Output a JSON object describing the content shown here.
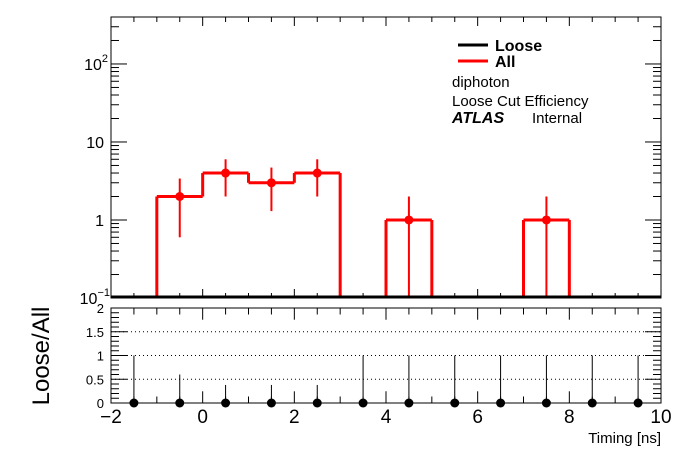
{
  "chart_data": {
    "type": "histogram",
    "colors": {
      "loose": "#000000",
      "all": "#ff0000",
      "ratio_points": "#000000"
    },
    "legend": {
      "placement": "top-right",
      "entries": [
        {
          "name": "Loose",
          "color": "#000000"
        },
        {
          "name": "All",
          "color": "#ff0000"
        }
      ]
    },
    "annotations": {
      "line1": "diphoton",
      "line2": "Loose Cut Efficiency",
      "atlas": "ATLAS",
      "internal": "Internal"
    },
    "x_axis": {
      "label": "Timing [ns]",
      "range": [
        -2,
        10
      ],
      "ticks": [
        -2,
        0,
        2,
        4,
        6,
        8,
        10
      ],
      "tick_labels": [
        "−2",
        "0",
        "2",
        "4",
        "6",
        "8",
        "10"
      ]
    },
    "top_panel": {
      "y_scale": "log",
      "y_range": [
        0.1,
        400
      ],
      "y_ticks": [
        {
          "value": 0.1,
          "base": "10",
          "exp": "−1"
        },
        {
          "value": 1,
          "label": "1"
        },
        {
          "value": 10,
          "label": "10"
        },
        {
          "value": 100,
          "base": "10",
          "exp": "2"
        }
      ],
      "series": [
        {
          "name": "All",
          "bins": [
            {
              "lo": -1,
              "hi": 0,
              "content": 2,
              "err_lo": 0.6,
              "err_hi": 3.4
            },
            {
              "lo": 0,
              "hi": 1,
              "content": 4,
              "err_lo": 2,
              "err_hi": 6
            },
            {
              "lo": 1,
              "hi": 2,
              "content": 3,
              "err_lo": 1.3,
              "err_hi": 4.7
            },
            {
              "lo": 2,
              "hi": 3,
              "content": 4,
              "err_lo": 2,
              "err_hi": 6
            },
            {
              "lo": 4,
              "hi": 5,
              "content": 1,
              "err_lo": 0.1,
              "err_hi": 2
            },
            {
              "lo": 7,
              "hi": 8,
              "content": 1,
              "err_lo": 0.1,
              "err_hi": 2
            }
          ]
        },
        {
          "name": "Loose",
          "bins": []
        }
      ]
    },
    "bottom_panel": {
      "y_label": "Loose/All",
      "y_range": [
        0,
        2
      ],
      "y_ticks": [
        0,
        0.5,
        1,
        1.5,
        2
      ],
      "y_tick_labels": [
        "0",
        "0.5",
        "1",
        "1.5",
        "2"
      ],
      "dotted_lines": [
        0.5,
        1,
        1.5,
        2
      ],
      "points": [
        {
          "x": -1.5,
          "y": 0,
          "err_hi": 1.0
        },
        {
          "x": -0.5,
          "y": 0,
          "err_hi": 0.6
        },
        {
          "x": 0.5,
          "y": 0,
          "err_hi": 0.38
        },
        {
          "x": 1.5,
          "y": 0,
          "err_hi": 0.38
        },
        {
          "x": 2.5,
          "y": 0,
          "err_hi": 0.38
        },
        {
          "x": 3.5,
          "y": 0,
          "err_hi": 1.0
        },
        {
          "x": 4.5,
          "y": 0,
          "err_hi": 1.0
        },
        {
          "x": 5.5,
          "y": 0,
          "err_hi": 1.0
        },
        {
          "x": 6.5,
          "y": 0,
          "err_hi": 1.0
        },
        {
          "x": 7.5,
          "y": 0,
          "err_hi": 1.0
        },
        {
          "x": 8.5,
          "y": 0,
          "err_hi": 1.0
        },
        {
          "x": 9.5,
          "y": 0,
          "err_hi": 1.0
        }
      ]
    }
  }
}
